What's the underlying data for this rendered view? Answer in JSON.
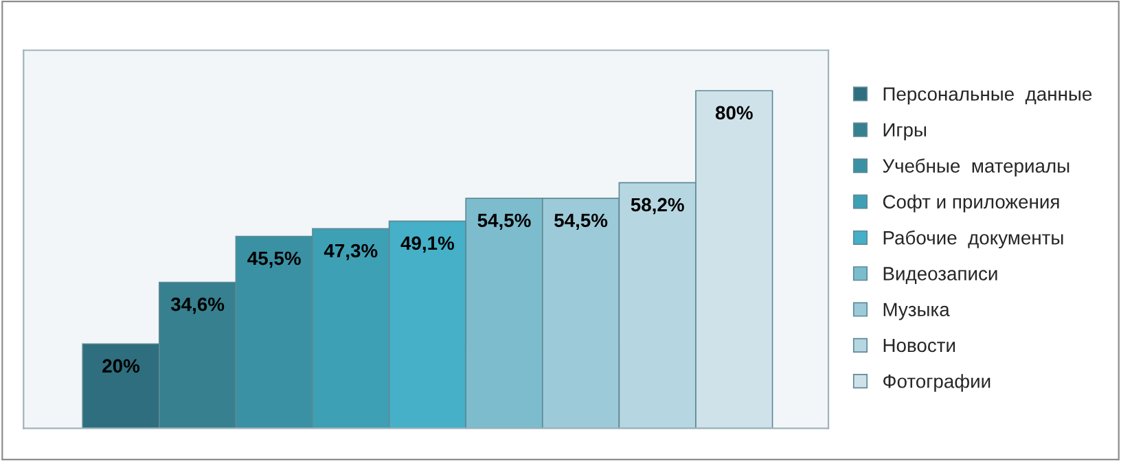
{
  "chart_data": {
    "type": "bar",
    "stacked": true,
    "categories": [
      null,
      null,
      null,
      null,
      null,
      null,
      null,
      null,
      null
    ],
    "series": [
      {
        "name": "Персональные  данные",
        "color": "#2e6e7e",
        "values": [
          20,
          null,
          null,
          null,
          null,
          null,
          null,
          null,
          null
        ],
        "value_labels": [
          "20%",
          null,
          null,
          null,
          null,
          null,
          null,
          null,
          null
        ]
      },
      {
        "name": "Игры",
        "color": "#36808f",
        "values": [
          null,
          34.6,
          null,
          null,
          null,
          null,
          null,
          null,
          null
        ],
        "value_labels": [
          null,
          "34,6%",
          null,
          null,
          null,
          null,
          null,
          null,
          null
        ]
      },
      {
        "name": "Учебные  материалы",
        "color": "#3a91a3",
        "values": [
          null,
          null,
          45.5,
          null,
          null,
          null,
          null,
          null,
          null
        ],
        "value_labels": [
          null,
          null,
          "45,5%",
          null,
          null,
          null,
          null,
          null,
          null
        ]
      },
      {
        "name": "Софт и приложения",
        "color": "#3ea0b5",
        "values": [
          null,
          null,
          null,
          47.3,
          null,
          null,
          null,
          null,
          null
        ],
        "value_labels": [
          null,
          null,
          null,
          "47,3%",
          null,
          null,
          null,
          null,
          null
        ]
      },
      {
        "name": "Рабочие  документы",
        "color": "#45b0c8",
        "values": [
          null,
          null,
          null,
          null,
          49.1,
          null,
          null,
          null,
          null
        ],
        "value_labels": [
          null,
          null,
          null,
          null,
          "49,1%",
          null,
          null,
          null,
          null
        ]
      },
      {
        "name": "Видеозаписи",
        "color": "#7dbccd",
        "values": [
          null,
          null,
          null,
          null,
          null,
          54.5,
          null,
          null,
          null
        ],
        "value_labels": [
          null,
          null,
          null,
          null,
          null,
          "54,5%",
          null,
          null,
          null
        ]
      },
      {
        "name": "Музыка",
        "color": "#9dcad8",
        "values": [
          null,
          null,
          null,
          null,
          null,
          null,
          54.5,
          null,
          null
        ],
        "value_labels": [
          null,
          null,
          null,
          null,
          null,
          null,
          "54,5%",
          null,
          null
        ]
      },
      {
        "name": "Новости",
        "color": "#b6d7e2",
        "values": [
          null,
          null,
          null,
          null,
          null,
          null,
          null,
          58.2,
          null
        ],
        "value_labels": [
          null,
          null,
          null,
          null,
          null,
          null,
          null,
          "58,2%",
          null
        ]
      },
      {
        "name": "Фотографии",
        "color": "#cfe2ea",
        "values": [
          null,
          null,
          null,
          null,
          null,
          null,
          null,
          null,
          80
        ],
        "value_labels": [
          null,
          null,
          null,
          null,
          null,
          null,
          null,
          null,
          "80%"
        ]
      }
    ],
    "tick_labels": false,
    "legend": "right"
  }
}
